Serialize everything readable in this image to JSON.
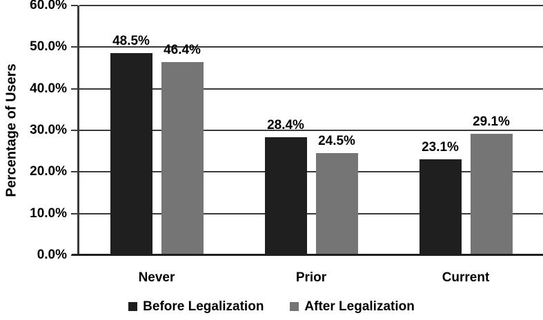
{
  "chart_data": {
    "type": "bar",
    "title": "",
    "xlabel": "",
    "ylabel": "Percentage of Users",
    "categories": [
      "Never",
      "Prior",
      "Current"
    ],
    "series": [
      {
        "name": "Before Legalization",
        "color": "#1f1f1f",
        "values": [
          48.5,
          28.4,
          23.1
        ],
        "value_labels": [
          "48.5%",
          "28.4%",
          "23.1%"
        ]
      },
      {
        "name": "After Legalization",
        "color": "#757575",
        "values": [
          46.4,
          24.5,
          29.1
        ],
        "value_labels": [
          "46.4%",
          "24.5%",
          "29.1%"
        ]
      }
    ],
    "y_axis": {
      "min": 0,
      "max": 60,
      "step": 10,
      "tick_labels": [
        "0.0%",
        "10.0%",
        "20.0%",
        "30.0%",
        "40.0%",
        "50.0%",
        "60.0%"
      ]
    },
    "grid": true,
    "legend_position": "bottom",
    "colors": {
      "gridline": "#3a3a3a",
      "y_axis_line": "#3a3a3a",
      "x_axis_line": "#1f1f1f",
      "text": "#000000",
      "background": "#ffffff"
    }
  }
}
